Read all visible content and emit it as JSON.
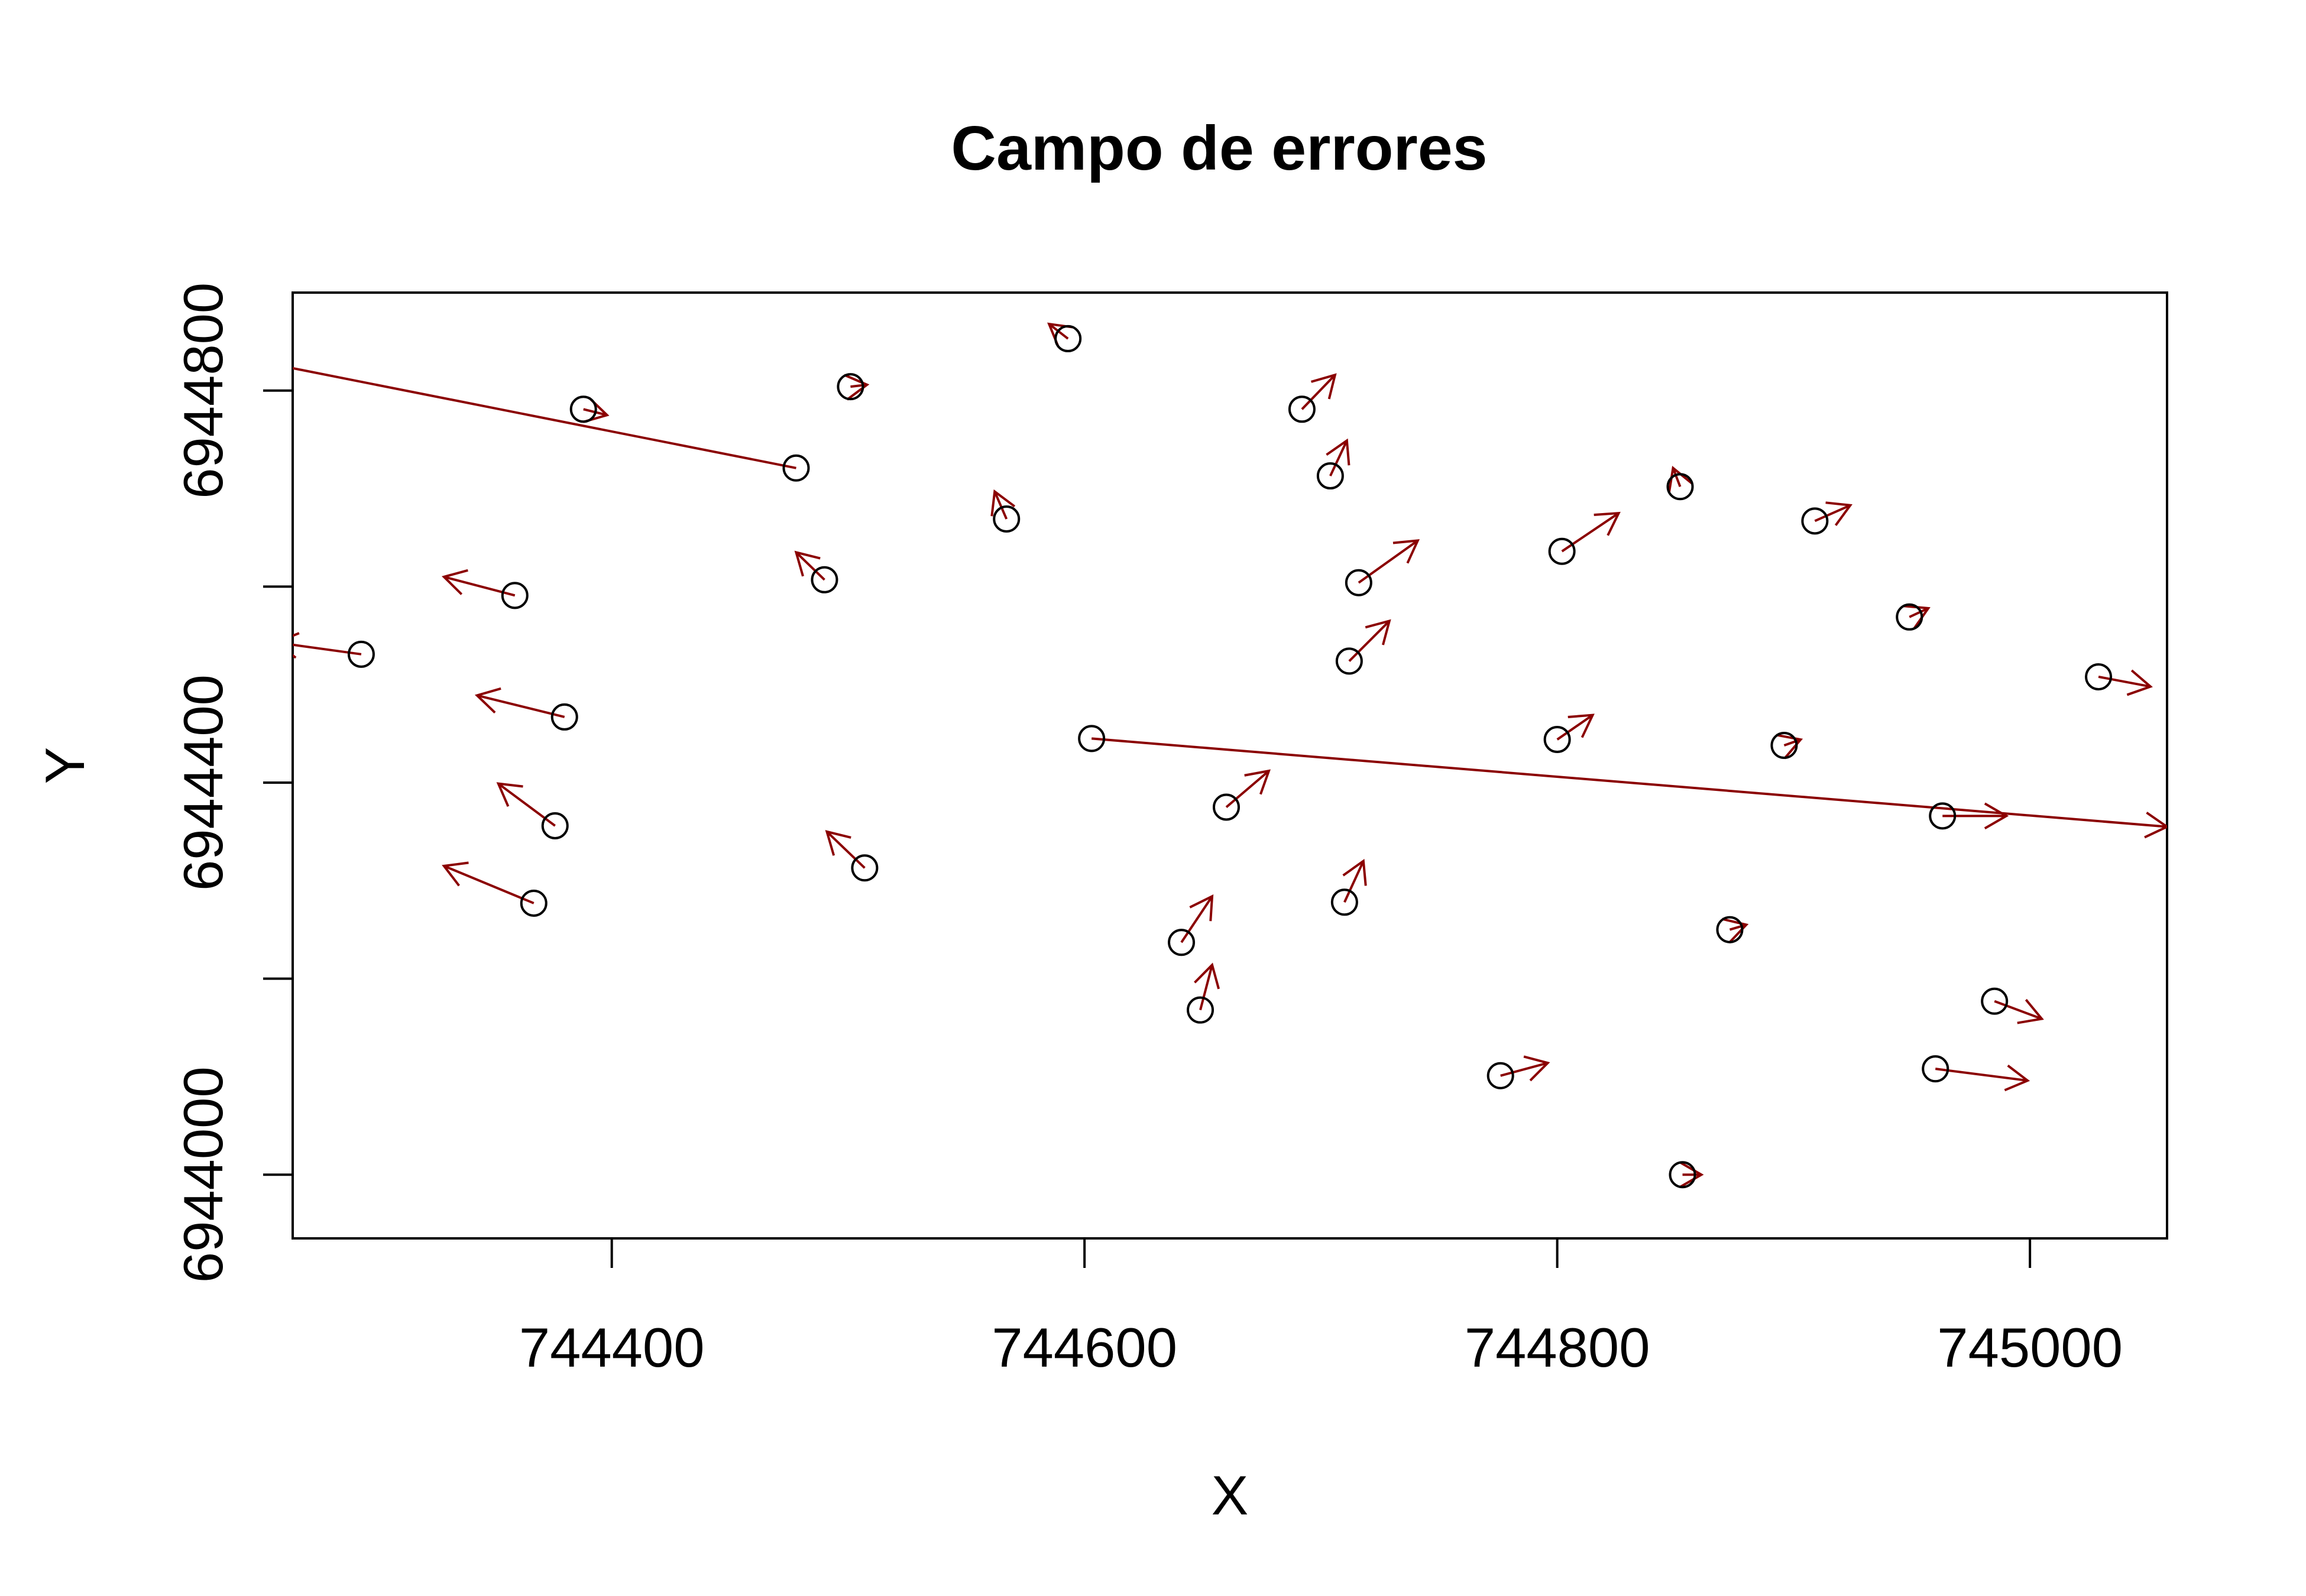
{
  "chart_data": {
    "type": "scatter",
    "title": "Campo de errores",
    "xlabel": "X",
    "ylabel": "Y",
    "xlim": [
      744265,
      745058
    ],
    "ylim": [
      6943935,
      6944900
    ],
    "x_ticks": [
      744400,
      744600,
      744800,
      745000
    ],
    "x_tick_labels": [
      "744400",
      "744600",
      "744800",
      "745000"
    ],
    "y_ticks": [
      6944000,
      6944200,
      6944400,
      6944600,
      6944800
    ],
    "y_tick_labels": [
      "6944000",
      "",
      "6944400",
      "",
      "6944800"
    ],
    "grid": false,
    "legend": "none",
    "point_color": "#000000",
    "arrow_color": "#8b0000",
    "points": [
      {
        "x": 744294,
        "y": 6944531,
        "dx": -36,
        "dy": 12
      },
      {
        "x": 744359,
        "y": 6944591,
        "dx": -30,
        "dy": 19
      },
      {
        "x": 744380,
        "y": 6944467,
        "dx": -37,
        "dy": 22
      },
      {
        "x": 744376,
        "y": 6944356,
        "dx": -24,
        "dy": 43
      },
      {
        "x": 744367,
        "y": 6944277,
        "dx": -38,
        "dy": 38
      },
      {
        "x": 744388,
        "y": 6944781,
        "dx": 10,
        "dy": -6
      },
      {
        "x": 744478,
        "y": 6944721,
        "dx": -230,
        "dy": 110
      },
      {
        "x": 744501,
        "y": 6944804,
        "dx": 7,
        "dy": 2
      },
      {
        "x": 744490,
        "y": 6944607,
        "dx": -12,
        "dy": 28
      },
      {
        "x": 744507,
        "y": 6944313,
        "dx": -16,
        "dy": 37
      },
      {
        "x": 744567,
        "y": 6944669,
        "dx": -5,
        "dy": 28
      },
      {
        "x": 744593,
        "y": 6944853,
        "dx": -8,
        "dy": 15
      },
      {
        "x": 744603,
        "y": 6944445,
        "dx": 455,
        "dy": -90
      },
      {
        "x": 744641,
        "y": 6944237,
        "dx": 13,
        "dy": 47
      },
      {
        "x": 744649,
        "y": 6944168,
        "dx": 5,
        "dy": 46
      },
      {
        "x": 744660,
        "y": 6944375,
        "dx": 18,
        "dy": 37
      },
      {
        "x": 744692,
        "y": 6944781,
        "dx": 14,
        "dy": 35
      },
      {
        "x": 744704,
        "y": 6944713,
        "dx": 7,
        "dy": 36
      },
      {
        "x": 744710,
        "y": 6944278,
        "dx": 8,
        "dy": 42
      },
      {
        "x": 744712,
        "y": 6944524,
        "dx": 17,
        "dy": 41
      },
      {
        "x": 744716,
        "y": 6944604,
        "dx": 25,
        "dy": 43
      },
      {
        "x": 744776,
        "y": 6944101,
        "dx": 20,
        "dy": 13
      },
      {
        "x": 744800,
        "y": 6944444,
        "dx": 15,
        "dy": 25
      },
      {
        "x": 744802,
        "y": 6944636,
        "dx": 24,
        "dy": 39
      },
      {
        "x": 744852,
        "y": 6944702,
        "dx": -3,
        "dy": 19
      },
      {
        "x": 744853,
        "y": 6944000,
        "dx": 8,
        "dy": 0
      },
      {
        "x": 744873,
        "y": 6944250,
        "dx": 7,
        "dy": 5
      },
      {
        "x": 744896,
        "y": 6944438,
        "dx": 7,
        "dy": 6
      },
      {
        "x": 744909,
        "y": 6944667,
        "dx": 15,
        "dy": 16
      },
      {
        "x": 744949,
        "y": 6944569,
        "dx": 8,
        "dy": 9
      },
      {
        "x": 744960,
        "y": 6944108,
        "dx": 39,
        "dy": -12
      },
      {
        "x": 744963,
        "y": 6944366,
        "dx": 27,
        "dy": 0
      },
      {
        "x": 744985,
        "y": 6944177,
        "dx": 20,
        "dy": -18
      },
      {
        "x": 745029,
        "y": 6944508,
        "dx": 22,
        "dy": -10
      }
    ]
  }
}
